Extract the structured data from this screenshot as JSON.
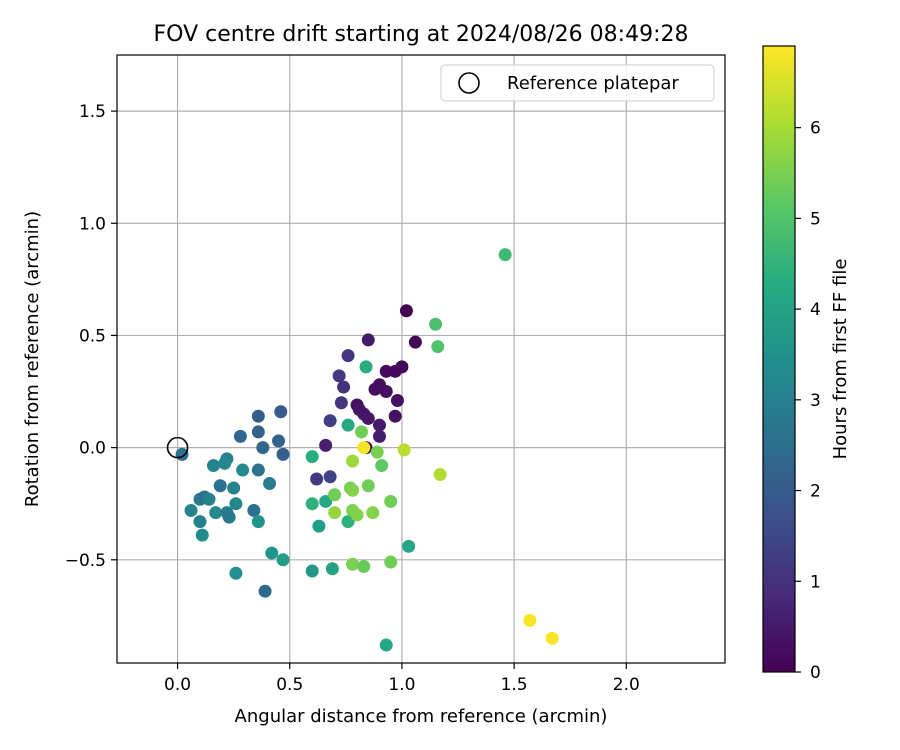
{
  "chart_data": {
    "type": "scatter",
    "title": "FOV centre drift starting at 2024/08/26 08:49:28",
    "xlabel": "Angular distance from reference (arcmin)",
    "ylabel": "Rotation from reference (arcmin)",
    "xlim": [
      -0.27,
      2.44
    ],
    "ylim": [
      -0.96,
      1.75
    ],
    "xticks": [
      0.0,
      0.5,
      1.0,
      1.5,
      2.0
    ],
    "xtick_labels": [
      "0.0",
      "0.5",
      "1.0",
      "1.5",
      "2.0"
    ],
    "yticks": [
      -0.5,
      0.0,
      0.5,
      1.0,
      1.5
    ],
    "ytick_labels": [
      "−0.5",
      "0.0",
      "0.5",
      "1.0",
      "1.5"
    ],
    "grid": true,
    "legend": {
      "position": "upper right",
      "entries": [
        "Reference platepar"
      ]
    },
    "reference_point": {
      "x": 0.0,
      "y": 0.0
    },
    "colorbar": {
      "label": "Hours from first FF file",
      "colormap": "viridis",
      "range": [
        0,
        6.9
      ],
      "ticks": [
        0,
        1,
        2,
        3,
        4,
        5,
        6
      ],
      "tick_labels": [
        "0",
        "1",
        "2",
        "3",
        "4",
        "5",
        "6"
      ]
    },
    "points": [
      {
        "x": 1.02,
        "y": 0.61,
        "c": 0.0
      },
      {
        "x": 1.06,
        "y": 0.47,
        "c": 0.1
      },
      {
        "x": 1.0,
        "y": 0.36,
        "c": 0.1
      },
      {
        "x": 0.93,
        "y": 0.34,
        "c": 0.2
      },
      {
        "x": 0.97,
        "y": 0.34,
        "c": 0.15
      },
      {
        "x": 0.9,
        "y": 0.28,
        "c": 0.2
      },
      {
        "x": 0.88,
        "y": 0.26,
        "c": 0.25
      },
      {
        "x": 0.93,
        "y": 0.25,
        "c": 0.3
      },
      {
        "x": 0.98,
        "y": 0.21,
        "c": 0.3
      },
      {
        "x": 0.8,
        "y": 0.19,
        "c": 0.35
      },
      {
        "x": 0.81,
        "y": 0.17,
        "c": 0.4
      },
      {
        "x": 0.83,
        "y": 0.15,
        "c": 0.45
      },
      {
        "x": 0.85,
        "y": 0.13,
        "c": 0.4
      },
      {
        "x": 0.97,
        "y": 0.14,
        "c": 0.35
      },
      {
        "x": 0.9,
        "y": 0.1,
        "c": 0.5
      },
      {
        "x": 0.9,
        "y": 0.05,
        "c": 0.55
      },
      {
        "x": 0.66,
        "y": 0.01,
        "c": 0.6
      },
      {
        "x": 0.84,
        "y": 0.0,
        "c": 0.2
      },
      {
        "x": 0.85,
        "y": 0.48,
        "c": 0.5
      },
      {
        "x": 0.76,
        "y": 0.41,
        "c": 1.1
      },
      {
        "x": 0.72,
        "y": 0.32,
        "c": 1.2
      },
      {
        "x": 0.74,
        "y": 0.27,
        "c": 1.0
      },
      {
        "x": 0.73,
        "y": 0.2,
        "c": 1.15
      },
      {
        "x": 0.68,
        "y": 0.12,
        "c": 1.3
      },
      {
        "x": 0.68,
        "y": -0.13,
        "c": 1.4
      },
      {
        "x": 0.62,
        "y": -0.14,
        "c": 1.2
      },
      {
        "x": 0.36,
        "y": 0.14,
        "c": 2.1
      },
      {
        "x": 0.46,
        "y": 0.16,
        "c": 2.0
      },
      {
        "x": 0.36,
        "y": 0.07,
        "c": 2.2
      },
      {
        "x": 0.28,
        "y": 0.05,
        "c": 2.3
      },
      {
        "x": 0.45,
        "y": 0.03,
        "c": 2.2
      },
      {
        "x": 0.38,
        "y": 0.0,
        "c": 2.35
      },
      {
        "x": 0.47,
        "y": -0.03,
        "c": 2.1
      },
      {
        "x": 0.02,
        "y": -0.03,
        "c": 2.6
      },
      {
        "x": 0.36,
        "y": -0.1,
        "c": 2.6
      },
      {
        "x": 0.41,
        "y": -0.16,
        "c": 2.9
      },
      {
        "x": 0.22,
        "y": -0.05,
        "c": 3.0
      },
      {
        "x": 0.16,
        "y": -0.08,
        "c": 3.1
      },
      {
        "x": 0.21,
        "y": -0.07,
        "c": 3.2
      },
      {
        "x": 0.29,
        "y": -0.1,
        "c": 3.3
      },
      {
        "x": 0.19,
        "y": -0.17,
        "c": 2.6
      },
      {
        "x": 0.25,
        "y": -0.18,
        "c": 3.1
      },
      {
        "x": 0.1,
        "y": -0.23,
        "c": 2.8
      },
      {
        "x": 0.12,
        "y": -0.22,
        "c": 2.6
      },
      {
        "x": 0.14,
        "y": -0.23,
        "c": 3.0
      },
      {
        "x": 0.26,
        "y": -0.25,
        "c": 3.2
      },
      {
        "x": 0.06,
        "y": -0.28,
        "c": 3.1
      },
      {
        "x": 0.17,
        "y": -0.29,
        "c": 3.3
      },
      {
        "x": 0.22,
        "y": -0.29,
        "c": 2.9
      },
      {
        "x": 0.23,
        "y": -0.31,
        "c": 2.8
      },
      {
        "x": 0.34,
        "y": -0.28,
        "c": 2.5
      },
      {
        "x": 0.1,
        "y": -0.33,
        "c": 3.0
      },
      {
        "x": 0.36,
        "y": -0.33,
        "c": 3.5
      },
      {
        "x": 0.11,
        "y": -0.39,
        "c": 3.3
      },
      {
        "x": 0.42,
        "y": -0.47,
        "c": 3.6
      },
      {
        "x": 0.47,
        "y": -0.5,
        "c": 3.8
      },
      {
        "x": 0.26,
        "y": -0.56,
        "c": 3.4
      },
      {
        "x": 0.39,
        "y": -0.64,
        "c": 2.4
      },
      {
        "x": 0.6,
        "y": -0.55,
        "c": 3.7
      },
      {
        "x": 0.69,
        "y": -0.54,
        "c": 4.0
      },
      {
        "x": 0.63,
        "y": -0.35,
        "c": 3.9
      },
      {
        "x": 0.6,
        "y": -0.04,
        "c": 4.3
      },
      {
        "x": 0.6,
        "y": -0.25,
        "c": 4.4
      },
      {
        "x": 0.66,
        "y": -0.24,
        "c": 4.2
      },
      {
        "x": 0.76,
        "y": 0.1,
        "c": 4.2
      },
      {
        "x": 0.84,
        "y": 0.36,
        "c": 4.3
      },
      {
        "x": 0.76,
        "y": -0.33,
        "c": 4.4
      },
      {
        "x": 1.03,
        "y": -0.44,
        "c": 4.1
      },
      {
        "x": 0.93,
        "y": -0.88,
        "c": 4.2
      },
      {
        "x": 1.46,
        "y": 0.86,
        "c": 4.7
      },
      {
        "x": 1.15,
        "y": 0.55,
        "c": 4.9
      },
      {
        "x": 1.16,
        "y": 0.45,
        "c": 5.0
      },
      {
        "x": 0.82,
        "y": 0.07,
        "c": 5.4
      },
      {
        "x": 0.91,
        "y": -0.08,
        "c": 5.2
      },
      {
        "x": 0.89,
        "y": -0.02,
        "c": 5.5
      },
      {
        "x": 0.77,
        "y": -0.18,
        "c": 5.5
      },
      {
        "x": 0.78,
        "y": -0.19,
        "c": 5.6
      },
      {
        "x": 0.7,
        "y": -0.21,
        "c": 5.4
      },
      {
        "x": 0.85,
        "y": -0.17,
        "c": 5.4
      },
      {
        "x": 0.95,
        "y": -0.24,
        "c": 5.4
      },
      {
        "x": 0.7,
        "y": -0.29,
        "c": 5.8
      },
      {
        "x": 0.78,
        "y": -0.28,
        "c": 5.5
      },
      {
        "x": 0.8,
        "y": -0.3,
        "c": 5.6
      },
      {
        "x": 0.87,
        "y": -0.29,
        "c": 5.6
      },
      {
        "x": 0.78,
        "y": -0.52,
        "c": 5.5
      },
      {
        "x": 0.83,
        "y": -0.53,
        "c": 5.3
      },
      {
        "x": 0.95,
        "y": -0.51,
        "c": 5.4
      },
      {
        "x": 0.78,
        "y": -0.06,
        "c": 5.9
      },
      {
        "x": 1.01,
        "y": -0.01,
        "c": 6.2
      },
      {
        "x": 1.17,
        "y": -0.12,
        "c": 6.1
      },
      {
        "x": 0.83,
        "y": 0.0,
        "c": 6.8
      },
      {
        "x": 1.57,
        "y": -0.77,
        "c": 6.85
      },
      {
        "x": 1.67,
        "y": -0.85,
        "c": 6.85
      }
    ]
  }
}
